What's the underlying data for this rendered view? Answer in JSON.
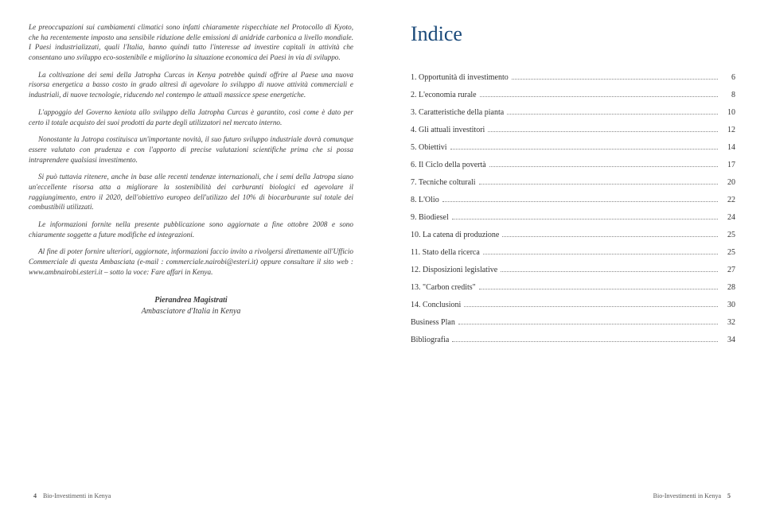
{
  "leftPage": {
    "paragraphs": [
      "Le preoccupazioni sui cambiamenti climatici sono infatti chiaramente rispecchiate nel Protocollo di Kyoto, che ha recentemente imposto una sensibile riduzione delle emissioni di anidride carbonica a livello mondiale. I Paesi industrializzati, quali l'Italia, hanno quindi tutto l'interesse ad investire capitali in attività che consentano uno sviluppo eco-sostenibile e migliorino la situazione economica dei Paesi in via di sviluppo.",
      "La coltivazione dei semi della Jatropha Curcas in Kenya potrebbe quindi offrire al Paese una nuova risorsa energetica a basso costo in grado altresì di agevolare lo sviluppo di nuove attività commerciali e industriali, di nuove tecnologie, riducendo nel contempo le attuali massicce spese energetiche.",
      "L'appoggio del Governo keniota allo sviluppo della Jatropha Curcas è garantito, così come è dato per certo il totale acquisto dei suoi prodotti da parte degli utilizzatori nel mercato interno.",
      "Nonostante la Jatropa costituisca un'importante novità, il suo futuro sviluppo industriale dovrà comunque essere valutato con prudenza e con l'apporto di precise valutazioni scientifiche prima che si possa intraprendere qualsiasi investimento.",
      "Si può tuttavia ritenere, anche in base alle recenti tendenze internazionali, che i semi della Jatropa siano un'eccellente risorsa atta a migliorare la sostenibilità dei carburanti biologici ed agevolare il raggiungimento, entro il 2020, dell'obiettivo europeo dell'utilizzo del 10% di biocarburante sul totale dei combustibili utilizzati.",
      "Le informazioni fornite nella presente pubblicazione sono aggiornate a fine ottobre 2008 e sono chiaramente soggette a future modifiche ed integrazioni.",
      "Al fine di poter fornire ulteriori, aggiornate, informazioni faccio invito a rivolgersi direttamente all'Ufficio Commerciale di questa Ambasciata (e-mail : commerciale.nairobi@esteri.it) oppure consultare il sito web : www.ambnairobi.esteri.it – sotto la voce: Fare affari in Kenya."
    ],
    "signature": {
      "name": "Pierandrea Magistrati",
      "role": "Ambasciatore d'Italia in Kenya"
    },
    "footer": {
      "pageNum": "4",
      "title": "Bio-Investimenti in Kenya"
    }
  },
  "rightPage": {
    "title": "Indice",
    "toc": [
      {
        "label": "1. Opportunità di investimento",
        "page": "6"
      },
      {
        "label": "2. L'economia rurale",
        "page": "8"
      },
      {
        "label": "3. Caratteristiche della pianta",
        "page": "10"
      },
      {
        "label": "4. Gli attuali investitori",
        "page": "12"
      },
      {
        "label": "5. Obiettivi",
        "page": "14"
      },
      {
        "label": "6. Il Ciclo della povertà",
        "page": "17"
      },
      {
        "label": "7. Tecniche colturali",
        "page": "20"
      },
      {
        "label": "8. L'Olio",
        "page": "22"
      },
      {
        "label": "9. Biodiesel",
        "page": "24"
      },
      {
        "label": "10. La catena di produzione",
        "page": "25"
      },
      {
        "label": "11. Stato della ricerca",
        "page": "25"
      },
      {
        "label": "12. Disposizioni legislative",
        "page": "27"
      },
      {
        "label": "13. \"Carbon credits\"",
        "page": "28"
      },
      {
        "label": "14. Conclusioni",
        "page": "30"
      },
      {
        "label": "Business Plan",
        "page": "32"
      },
      {
        "label": "Bibliografia",
        "page": "34"
      }
    ],
    "footer": {
      "title": "Bio-Investimenti in Kenya",
      "pageNum": "5"
    }
  },
  "colors": {
    "titleColor": "#1b4a7a",
    "textColor": "#333333",
    "background": "#ffffff"
  }
}
